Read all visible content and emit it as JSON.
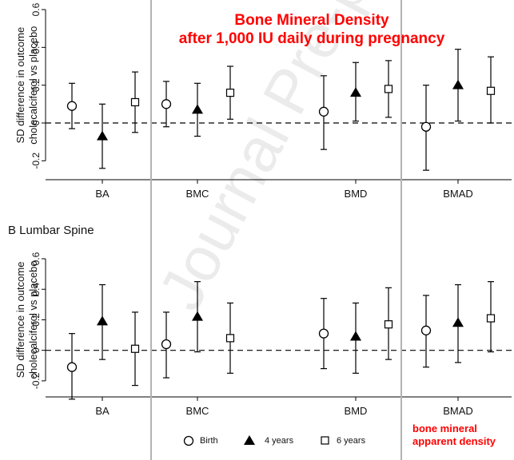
{
  "title": {
    "line1": "Bone Mineral Density",
    "line2": "after 1,000 IU daily during pregnancy"
  },
  "watermark": "Journal Pre-proof",
  "annotation": {
    "line1": "bone mineral",
    "line2": "apparent density"
  },
  "legend": {
    "birth": "Birth",
    "four_years": "4 years",
    "six_years": "6 years"
  },
  "colors": {
    "accent": "#ff0000",
    "axis": "#000000",
    "divider": "#b3b3b3"
  },
  "chart_data": [
    {
      "type": "scatter",
      "panel": "top",
      "panel_label": "",
      "ylabel_line1": "SD difference in outcome",
      "ylabel_line2": "cholecalciferol vs placebo",
      "ylim": [
        -0.3,
        0.6
      ],
      "yticks": [
        "-0.2",
        "0",
        "0.2",
        "0.4",
        "0.6"
      ],
      "ytick_values": [
        -0.2,
        0,
        0.2,
        0.4,
        0.6
      ],
      "reference_line": 0,
      "categories": [
        "BA",
        "BMC",
        "BMD",
        "BMAD"
      ],
      "series": [
        {
          "name": "Birth",
          "marker": "circle",
          "values": [
            0.09,
            0.1,
            0.06,
            -0.02
          ],
          "lower": [
            -0.03,
            -0.02,
            -0.14,
            -0.25
          ],
          "upper": [
            0.21,
            0.22,
            0.25,
            0.2
          ]
        },
        {
          "name": "4 years",
          "marker": "triangle",
          "values": [
            -0.07,
            0.07,
            0.16,
            0.2
          ],
          "lower": [
            -0.24,
            -0.07,
            0.01,
            0.01
          ],
          "upper": [
            0.1,
            0.21,
            0.32,
            0.39
          ]
        },
        {
          "name": "6 years",
          "marker": "square",
          "values": [
            0.11,
            0.16,
            0.18,
            0.17
          ],
          "lower": [
            -0.05,
            0.02,
            0.03,
            0.0
          ],
          "upper": [
            0.27,
            0.3,
            0.33,
            0.35
          ]
        }
      ]
    },
    {
      "type": "scatter",
      "panel": "bottom",
      "panel_label": "B Lumbar Spine",
      "ylabel_line1": "SD difference in outcome",
      "ylabel_line2": "cholecalciferol vs placebo",
      "ylim": [
        -0.3,
        0.6
      ],
      "yticks": [
        "-0.2",
        "0",
        "0.2",
        "0.4",
        "0.6"
      ],
      "ytick_values": [
        -0.2,
        0,
        0.2,
        0.4,
        0.6
      ],
      "reference_line": 0,
      "categories": [
        "BA",
        "BMC",
        "BMD",
        "BMAD"
      ],
      "series": [
        {
          "name": "Birth",
          "marker": "circle",
          "values": [
            -0.11,
            0.04,
            0.11,
            0.13
          ],
          "lower": [
            -0.32,
            -0.18,
            -0.12,
            -0.11
          ],
          "upper": [
            0.11,
            0.25,
            0.34,
            0.36
          ]
        },
        {
          "name": "4 years",
          "marker": "triangle",
          "values": [
            0.19,
            0.22,
            0.09,
            0.18
          ],
          "lower": [
            -0.06,
            -0.01,
            -0.15,
            -0.08
          ],
          "upper": [
            0.43,
            0.45,
            0.31,
            0.43
          ]
        },
        {
          "name": "6 years",
          "marker": "square",
          "values": [
            0.01,
            0.08,
            0.17,
            0.21
          ],
          "lower": [
            -0.23,
            -0.15,
            -0.06,
            -0.01
          ],
          "upper": [
            0.25,
            0.31,
            0.41,
            0.45
          ]
        }
      ]
    }
  ]
}
